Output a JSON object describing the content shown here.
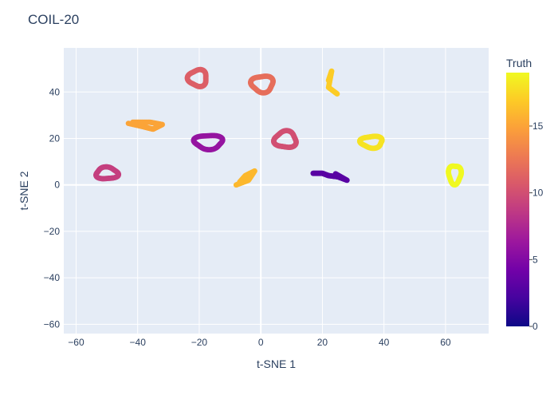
{
  "chart_data": {
    "type": "scatter",
    "title": "COIL-20",
    "xlabel": "t-SNE 1",
    "ylabel": "t-SNE 2",
    "xlim": [
      -64,
      74
    ],
    "ylim": [
      -64,
      59
    ],
    "xticks": [
      -60,
      -40,
      -20,
      0,
      20,
      40,
      60
    ],
    "yticks": [
      -60,
      -40,
      -20,
      0,
      20,
      40
    ],
    "tick_labels_x": [
      "−60",
      "−40",
      "−20",
      "0",
      "20",
      "40",
      "60"
    ],
    "tick_labels_y": [
      "−60",
      "−40",
      "−20",
      "0",
      "20",
      "40"
    ],
    "grid": true,
    "colorbar": {
      "title": "Truth",
      "range": [
        0,
        19
      ],
      "ticks": [
        0,
        5,
        10,
        15
      ],
      "tick_labels": [
        "0",
        "5",
        "10",
        "15"
      ],
      "colorscale": [
        "#0d0887",
        "#46039f",
        "#7201a8",
        "#9c179e",
        "#bd3786",
        "#d8576b",
        "#ed7953",
        "#fb9f3a",
        "#fdca26",
        "#f0f921"
      ]
    },
    "clusters": [
      {
        "label": 11,
        "shape": "loop",
        "center": [
          -20.5,
          46
        ],
        "rx": 3,
        "ry": 3.5
      },
      {
        "label": 12,
        "shape": "loop",
        "center": [
          0.5,
          43.5
        ],
        "rx": 3.5,
        "ry": 3.5
      },
      {
        "label": 17,
        "shape": "path",
        "points": [
          [
            22,
            45
          ],
          [
            23,
            49
          ],
          [
            22,
            42
          ],
          [
            25,
            39
          ]
        ]
      },
      {
        "label": 15,
        "shape": "path",
        "points": [
          [
            -43,
            26.5
          ],
          [
            -38,
            25
          ],
          [
            -35,
            24
          ],
          [
            -32,
            26
          ],
          [
            -36,
            27
          ],
          [
            -42,
            27
          ]
        ]
      },
      {
        "label": 6,
        "shape": "loop",
        "center": [
          -17,
          18.5
        ],
        "rx": 4.5,
        "ry": 3
      },
      {
        "label": 10,
        "shape": "loop",
        "center": [
          8,
          19.5
        ],
        "rx": 3.5,
        "ry": 3.5
      },
      {
        "label": 18,
        "shape": "loop",
        "center": [
          36,
          18.5
        ],
        "rx": 3.5,
        "ry": 2.5
      },
      {
        "label": 9,
        "shape": "loop",
        "center": [
          -50,
          5
        ],
        "rx": 3.5,
        "ry": 2.5
      },
      {
        "label": 16,
        "shape": "path",
        "points": [
          [
            -8,
            0
          ],
          [
            -4,
            2
          ],
          [
            -2,
            6
          ],
          [
            -5,
            4
          ],
          [
            -7,
            1
          ]
        ]
      },
      {
        "label": 3,
        "shape": "path",
        "points": [
          [
            17,
            5
          ],
          [
            20,
            5
          ],
          [
            22,
            4
          ],
          [
            25,
            3.5
          ],
          [
            28,
            2
          ],
          [
            24,
            5
          ]
        ]
      },
      {
        "label": 19,
        "shape": "loop",
        "center": [
          63,
          4.5
        ],
        "rx": 2,
        "ry": 4
      }
    ]
  }
}
